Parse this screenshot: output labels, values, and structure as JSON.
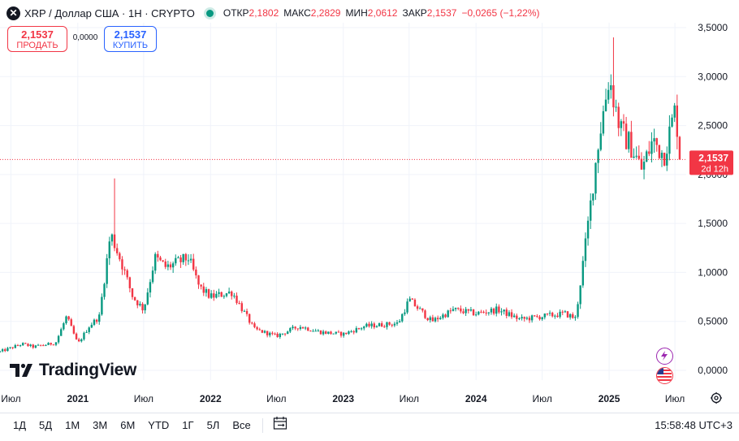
{
  "header": {
    "symbol_icon": "xrp-x-icon",
    "symbol_glyph": "✕",
    "title": "XRP / Доллар США · 1Н · CRYPTO",
    "ohlc": [
      {
        "label": "ОТКР",
        "value": "2,1802"
      },
      {
        "label": "МАКС",
        "value": "2,2829"
      },
      {
        "label": "МИН",
        "value": "2,0612"
      },
      {
        "label": "ЗАКР",
        "value": "2,1537"
      },
      {
        "label": "",
        "value": "−0,0265 (−1,22%)"
      }
    ]
  },
  "trade": {
    "sell_price": "2,1537",
    "sell_label": "ПРОДАТЬ",
    "spread": "0,0000",
    "buy_price": "2,1537",
    "buy_label": "КУПИТЬ"
  },
  "price_tag": {
    "value": "2,1537",
    "countdown": "2d 12h",
    "color": "#f23645"
  },
  "logo_text": "TradingView",
  "range_buttons": [
    "1Д",
    "5Д",
    "1М",
    "3М",
    "6М",
    "YTD",
    "1Г",
    "5Л",
    "Все"
  ],
  "clock": "15:58:48 UTC+3",
  "colors": {
    "up": "#089981",
    "down": "#f23645",
    "accent": "#2962ff",
    "grid": "#f0f3fa"
  },
  "chart_data": {
    "type": "candlestick",
    "interval": "1W",
    "y_axis": {
      "min": 0,
      "max": 3.5,
      "ticks": [
        {
          "v": 3.5,
          "label": "3,5000"
        },
        {
          "v": 3.0,
          "label": "3,0000"
        },
        {
          "v": 2.5,
          "label": "2,5000"
        },
        {
          "v": 2.0,
          "label": "2,0000"
        },
        {
          "v": 1.5,
          "label": "1,5000"
        },
        {
          "v": 1.0,
          "label": "1,0000"
        },
        {
          "v": 0.5,
          "label": "0,5000"
        },
        {
          "v": 0.0,
          "label": "0,0000"
        }
      ]
    },
    "x_axis": {
      "start": "2020-06",
      "end": "2025-08",
      "ticks": [
        {
          "t": "2020-07",
          "label": "Июл",
          "bold": false
        },
        {
          "t": "2021-01",
          "label": "2021",
          "bold": true
        },
        {
          "t": "2021-07",
          "label": "Июл",
          "bold": false
        },
        {
          "t": "2022-01",
          "label": "2022",
          "bold": true
        },
        {
          "t": "2022-07",
          "label": "Июл",
          "bold": false
        },
        {
          "t": "2023-01",
          "label": "2023",
          "bold": true
        },
        {
          "t": "2023-07",
          "label": "Июл",
          "bold": false
        },
        {
          "t": "2024-01",
          "label": "2024",
          "bold": true
        },
        {
          "t": "2024-07",
          "label": "Июл",
          "bold": false
        },
        {
          "t": "2025-01",
          "label": "2025",
          "bold": true
        },
        {
          "t": "2025-07",
          "label": "Июл",
          "bold": false
        }
      ]
    },
    "last_price": 2.1537,
    "price_path": [
      [
        "2020-06",
        0.19
      ],
      [
        "2020-08",
        0.27
      ],
      [
        "2020-09",
        0.24
      ],
      [
        "2020-11",
        0.28
      ],
      [
        "2020-12",
        0.55
      ],
      [
        "2021-01",
        0.27
      ],
      [
        "2021-02",
        0.45
      ],
      [
        "2021-03",
        0.55
      ],
      [
        "2021-04",
        1.4
      ],
      [
        "2021-05",
        1.1
      ],
      [
        "2021-06",
        0.75
      ],
      [
        "2021-07",
        0.62
      ],
      [
        "2021-08",
        1.15
      ],
      [
        "2021-09",
        1.05
      ],
      [
        "2021-10",
        1.1
      ],
      [
        "2021-11",
        1.15
      ],
      [
        "2021-12",
        0.85
      ],
      [
        "2022-01",
        0.75
      ],
      [
        "2022-03",
        0.8
      ],
      [
        "2022-05",
        0.42
      ],
      [
        "2022-07",
        0.35
      ],
      [
        "2022-09",
        0.45
      ],
      [
        "2022-11",
        0.39
      ],
      [
        "2023-01",
        0.37
      ],
      [
        "2023-03",
        0.45
      ],
      [
        "2023-05",
        0.47
      ],
      [
        "2023-06",
        0.48
      ],
      [
        "2023-07",
        0.72
      ],
      [
        "2023-09",
        0.5
      ],
      [
        "2023-11",
        0.62
      ],
      [
        "2024-01",
        0.58
      ],
      [
        "2024-03",
        0.62
      ],
      [
        "2024-05",
        0.52
      ],
      [
        "2024-07",
        0.55
      ],
      [
        "2024-09",
        0.58
      ],
      [
        "2024-10",
        0.53
      ],
      [
        "2024-11",
        1.4
      ],
      [
        "2024-12",
        2.3
      ],
      [
        "2025-01",
        3.0
      ],
      [
        "2025-02",
        2.45
      ],
      [
        "2025-03",
        2.3
      ],
      [
        "2025-04",
        2.05
      ],
      [
        "2025-05",
        2.35
      ],
      [
        "2025-06",
        2.2
      ],
      [
        "2025-07",
        2.65
      ],
      [
        "2025-07-20",
        2.1537
      ]
    ],
    "notable_highs": [
      [
        "2021-04-12",
        1.96
      ],
      [
        "2025-01-13",
        3.4
      ]
    ]
  }
}
